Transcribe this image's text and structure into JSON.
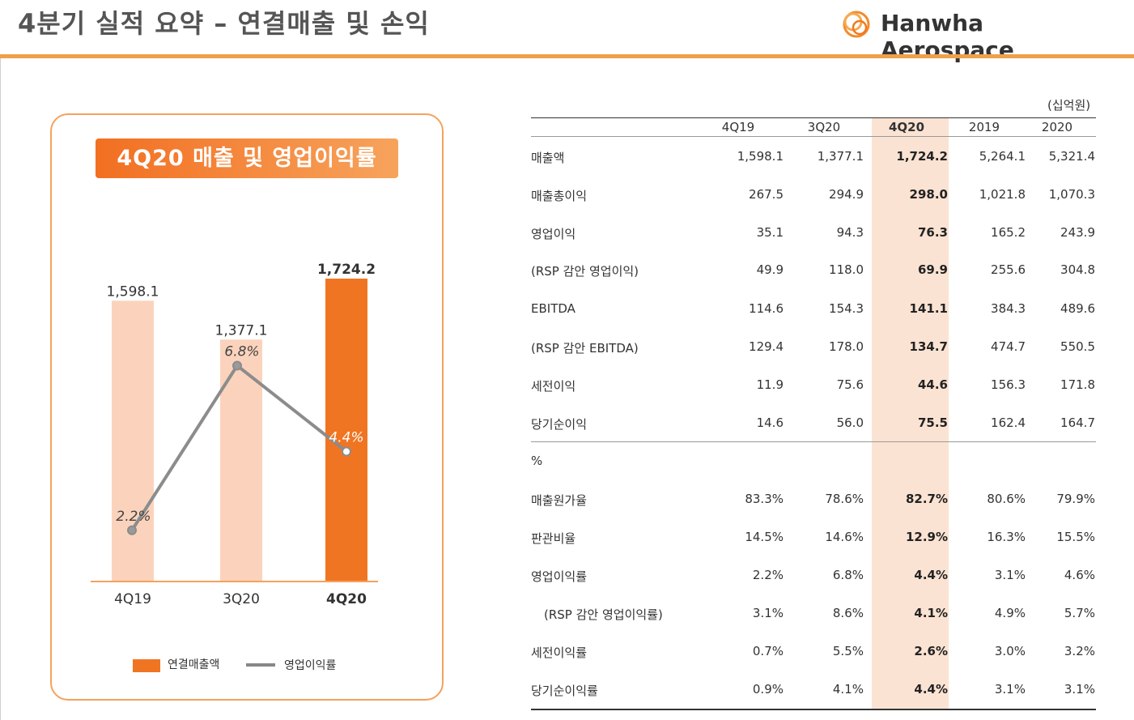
{
  "page": {
    "title": "4분기 실적 요약 – 연결매출 및 손익",
    "logo_text": "Hanwha Aerospace"
  },
  "chart_data": {
    "type": "bar",
    "title": "4Q20 매출 및 영업이익률",
    "categories": [
      "4Q19",
      "3Q20",
      "4Q20"
    ],
    "series": [
      {
        "name": "연결매출액",
        "type": "bar",
        "values": [
          1598.1,
          1377.1,
          1724.2
        ],
        "labels": [
          "1,598.1",
          "1,377.1",
          "1,724.2"
        ]
      },
      {
        "name": "영업이익률",
        "type": "line",
        "values": [
          2.2,
          6.8,
          4.4
        ],
        "labels": [
          "2.2%",
          "6.8%",
          "4.4%"
        ]
      }
    ],
    "highlight_category": "4Q20",
    "colors": {
      "bar_past": "#fbd3bc",
      "bar_current": "#f07522",
      "line": "#8c8c8c"
    }
  },
  "table": {
    "unit": "(십억원)",
    "columns": [
      "4Q19",
      "3Q20",
      "4Q20",
      "2019",
      "2020"
    ],
    "highlight_column": 2,
    "rows": [
      {
        "label": "매출액",
        "values": [
          "1,598.1",
          "1,377.1",
          "1,724.2",
          "5,264.1",
          "5,321.4"
        ]
      },
      {
        "label": "매출총이익",
        "values": [
          "267.5",
          "294.9",
          "298.0",
          "1,021.8",
          "1,070.3"
        ]
      },
      {
        "label": "영업이익",
        "values": [
          "35.1",
          "94.3",
          "76.3",
          "165.2",
          "243.9"
        ]
      },
      {
        "label": "(RSP 감안 영업이익)",
        "values": [
          "49.9",
          "118.0",
          "69.9",
          "255.6",
          "304.8"
        ]
      },
      {
        "label": "EBITDA",
        "values": [
          "114.6",
          "154.3",
          "141.1",
          "384.3",
          "489.6"
        ]
      },
      {
        "label": "(RSP 감안 EBITDA)",
        "values": [
          "129.4",
          "178.0",
          "134.7",
          "474.7",
          "550.5"
        ]
      },
      {
        "label": "세전이익",
        "values": [
          "11.9",
          "75.6",
          "44.6",
          "156.3",
          "171.8"
        ]
      },
      {
        "label": "당기순이익",
        "values": [
          "14.6",
          "56.0",
          "75.5",
          "162.4",
          "164.7"
        ]
      }
    ],
    "pct_section_label": "%",
    "pct_rows": [
      {
        "label": "매출원가율",
        "values": [
          "83.3%",
          "78.6%",
          "82.7%",
          "80.6%",
          "79.9%"
        ]
      },
      {
        "label": "판관비율",
        "values": [
          "14.5%",
          "14.6%",
          "12.9%",
          "16.3%",
          "15.5%"
        ]
      },
      {
        "label": "영업이익률",
        "values": [
          "2.2%",
          "6.8%",
          "4.4%",
          "3.1%",
          "4.6%"
        ]
      },
      {
        "label": "(RSP 감안 영업이익률)",
        "values": [
          "3.1%",
          "8.6%",
          "4.1%",
          "4.9%",
          "5.7%"
        ]
      },
      {
        "label": "세전이익률",
        "values": [
          "0.7%",
          "5.5%",
          "2.6%",
          "3.0%",
          "3.2%"
        ]
      },
      {
        "label": "당기순이익률",
        "values": [
          "0.9%",
          "4.1%",
          "4.4%",
          "3.1%",
          "3.1%"
        ]
      }
    ]
  }
}
